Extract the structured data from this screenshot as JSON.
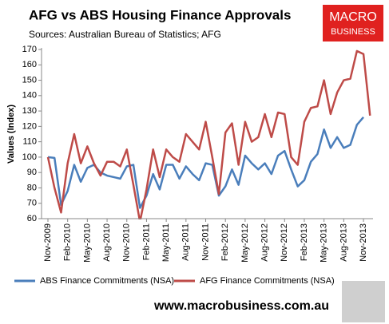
{
  "chart_data": {
    "type": "line",
    "title": "AFG vs ABS Housing Finance Approvals",
    "subtitle": "Sources: Australian Bureau of Statistics; AFG",
    "logo": [
      "MACRO",
      "BUSINESS"
    ],
    "footer": "www.macrobusiness.com.au",
    "ylabel": "Values (Index)",
    "categories": [
      "Nov-2009",
      null,
      null,
      "Feb-2010",
      null,
      null,
      "May-2010",
      null,
      null,
      "Aug-2010",
      null,
      null,
      "Nov-2010",
      null,
      null,
      "Feb-2011",
      null,
      null,
      "May-2011",
      null,
      null,
      "Aug-2011",
      null,
      null,
      "Nov-2011",
      null,
      null,
      "Feb-2012",
      null,
      null,
      "May-2012",
      null,
      null,
      "Aug-2012",
      null,
      null,
      "Nov-2012",
      null,
      null,
      "Feb-2013",
      null,
      null,
      "May-2013",
      null,
      null,
      "Aug-2013",
      null,
      null,
      "Nov-2013",
      null
    ],
    "series": [
      {
        "name": "ABS Finance Commitments (NSA)",
        "color": "#4a7ebb",
        "values": [
          100,
          99.5,
          69,
          78,
          95,
          84,
          93,
          95,
          90,
          88,
          87,
          86,
          94,
          95,
          67,
          75,
          89,
          79,
          95,
          95,
          86,
          94,
          89,
          85,
          96,
          95,
          75,
          81,
          92,
          82,
          101,
          96,
          92,
          96,
          89,
          101,
          104,
          92,
          81,
          85,
          97,
          102,
          118,
          106,
          113,
          106,
          108,
          121,
          126,
          null
        ]
      },
      {
        "name": "AFG Finance Commitments (NSA)",
        "color": "#be4b48",
        "values": [
          100,
          80,
          64,
          96,
          115,
          96,
          107,
          96,
          88,
          97,
          97,
          94,
          105,
          82,
          58,
          79,
          105,
          87,
          105,
          100,
          97,
          115,
          110,
          105,
          123,
          100,
          76,
          116,
          122,
          95,
          123,
          110,
          113,
          128,
          113,
          129,
          128,
          100,
          95,
          123,
          132,
          133,
          150,
          128,
          142,
          150,
          151,
          169,
          167,
          127
        ]
      }
    ],
    "ylim": [
      60,
      170
    ],
    "yticks": [
      60,
      70,
      80,
      90,
      100,
      110,
      120,
      130,
      140,
      150,
      160,
      170
    ],
    "grid": false
  }
}
